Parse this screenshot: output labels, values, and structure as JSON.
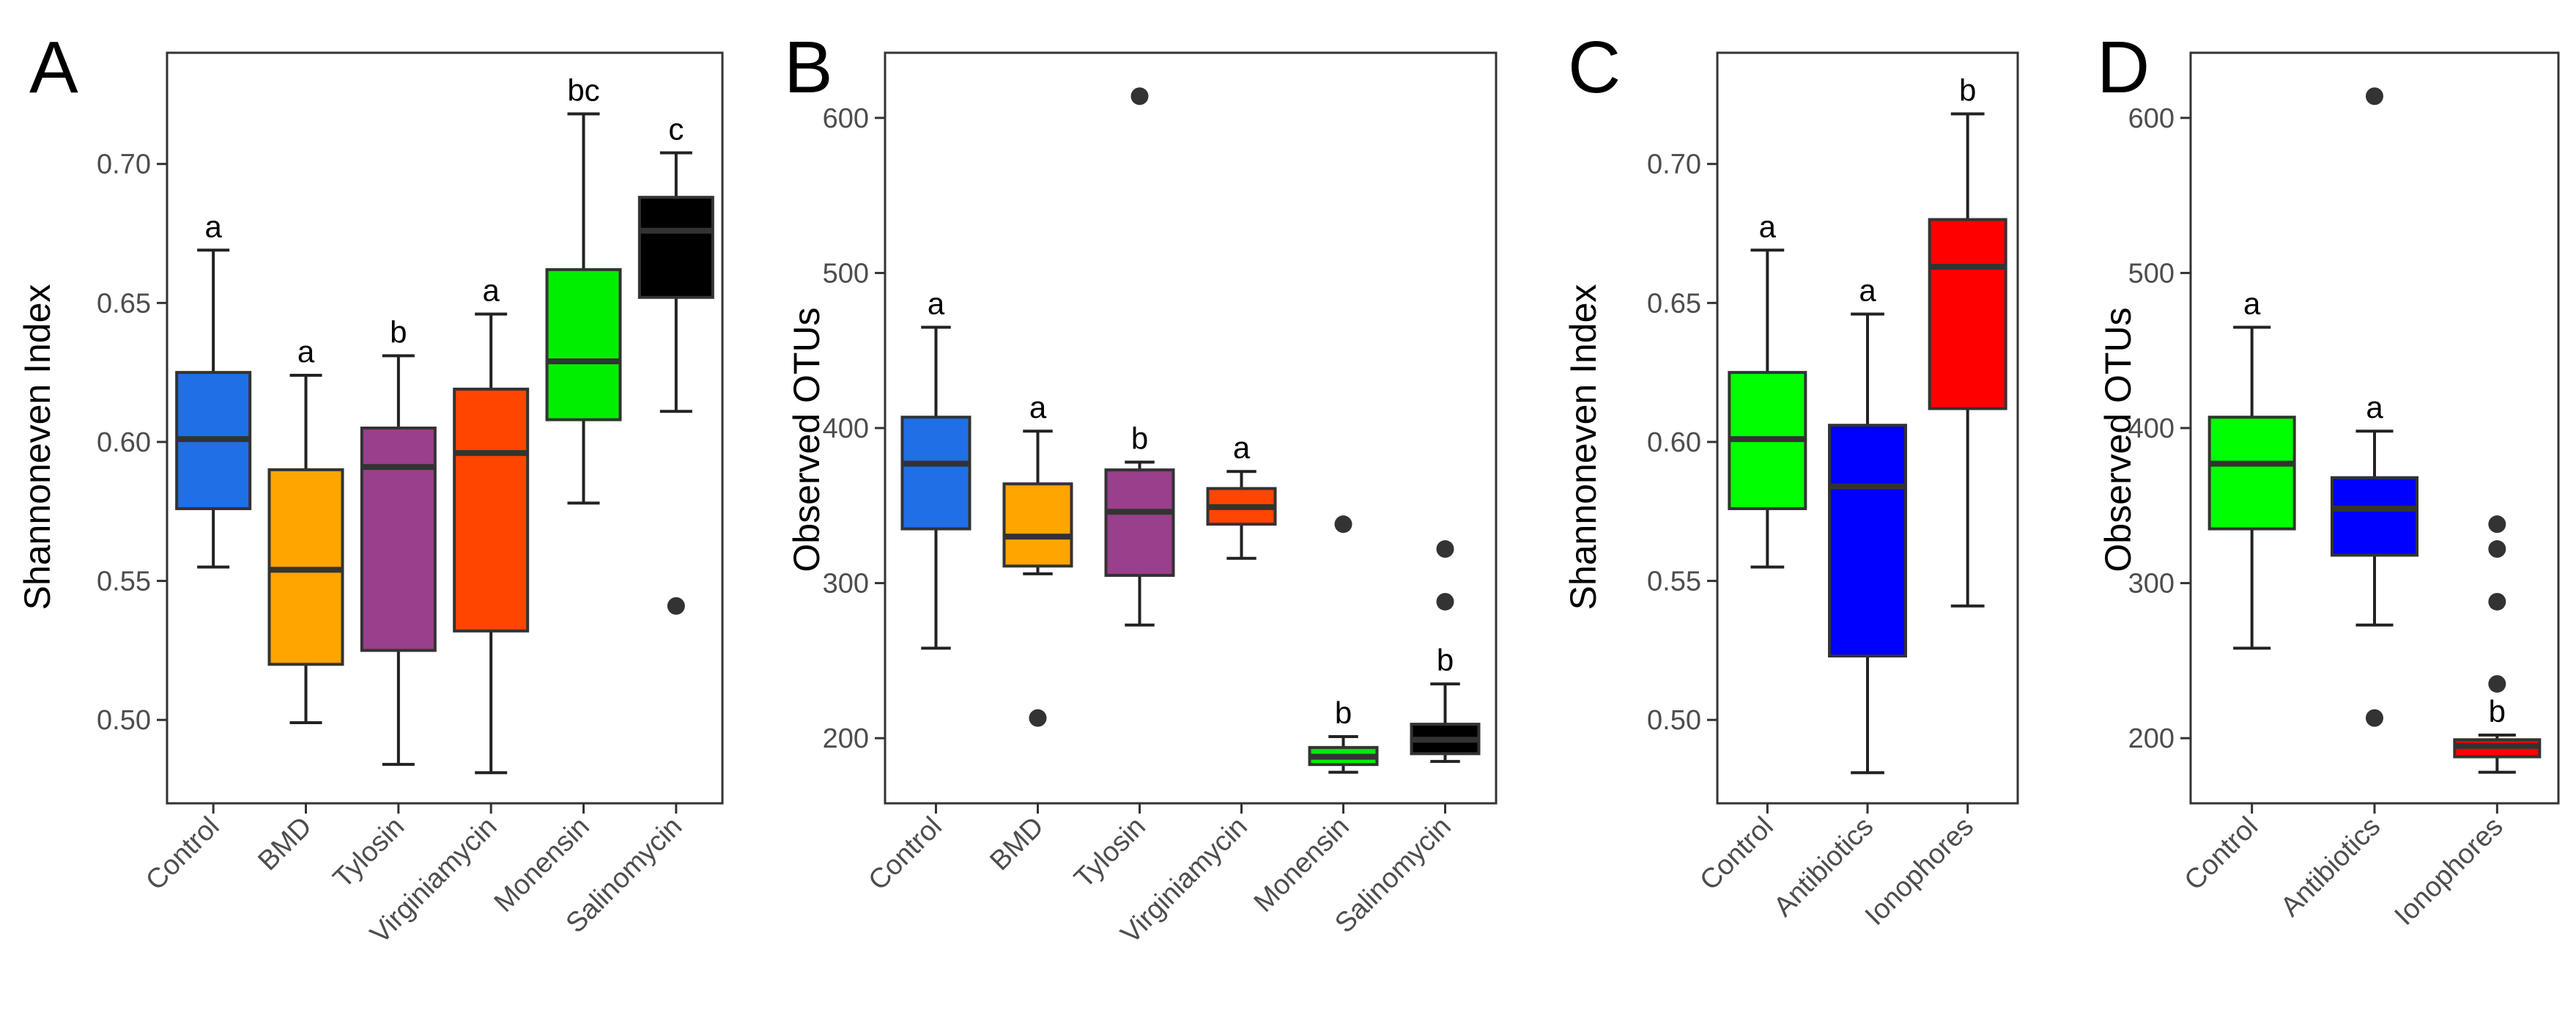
{
  "chart_data": [
    {
      "panel": "A",
      "type": "box",
      "ylabel": "Shannoneven Index",
      "xlabel": "",
      "ylim": [
        0.47,
        0.74
      ],
      "yticks": [
        0.5,
        0.55,
        0.6,
        0.65,
        0.7
      ],
      "ytick_labels": [
        "0.50",
        "0.55",
        "0.60",
        "0.65",
        "0.70"
      ],
      "boxes": [
        {
          "label": "Control",
          "color": "#1F6FE6",
          "whisker_low": 0.555,
          "q1": 0.576,
          "median": 0.601,
          "q3": 0.625,
          "whisker_high": 0.669,
          "outliers": [],
          "sig": "a"
        },
        {
          "label": "BMD",
          "color": "#FFA500",
          "whisker_low": 0.499,
          "q1": 0.52,
          "median": 0.554,
          "q3": 0.59,
          "whisker_high": 0.624,
          "outliers": [],
          "sig": "a"
        },
        {
          "label": "Tylosin",
          "color": "#9A3F8B",
          "whisker_low": 0.484,
          "q1": 0.525,
          "median": 0.591,
          "q3": 0.605,
          "whisker_high": 0.631,
          "outliers": [],
          "sig": "b"
        },
        {
          "label": "Virginiamycin",
          "color": "#FF4500",
          "whisker_low": 0.481,
          "q1": 0.532,
          "median": 0.596,
          "q3": 0.619,
          "whisker_high": 0.646,
          "outliers": [],
          "sig": "a"
        },
        {
          "label": "Monensin",
          "color": "#00EE00",
          "whisker_low": 0.578,
          "q1": 0.608,
          "median": 0.629,
          "q3": 0.662,
          "whisker_high": 0.718,
          "outliers": [],
          "sig": "bc"
        },
        {
          "label": "Salinomycin",
          "color": "#000000",
          "whisker_low": 0.611,
          "q1": 0.652,
          "median": 0.676,
          "q3": 0.688,
          "whisker_high": 0.704,
          "outliers": [
            0.541
          ],
          "sig": "c"
        }
      ]
    },
    {
      "panel": "B",
      "type": "box",
      "ylabel": "Observed OTUs",
      "xlabel": "",
      "ylim": [
        158,
        642
      ],
      "yticks": [
        200,
        300,
        400,
        500,
        600
      ],
      "ytick_labels": [
        "200",
        "300",
        "400",
        "500",
        "600"
      ],
      "boxes": [
        {
          "label": "Control",
          "color": "#1F6FE6",
          "whisker_low": 258,
          "q1": 335,
          "median": 377,
          "q3": 407,
          "whisker_high": 465,
          "outliers": [],
          "sig": "a"
        },
        {
          "label": "BMD",
          "color": "#FFA500",
          "whisker_low": 306,
          "q1": 311,
          "median": 330,
          "q3": 364,
          "whisker_high": 398,
          "outliers": [
            213
          ],
          "sig": "a"
        },
        {
          "label": "Tylosin",
          "color": "#9A3F8B",
          "whisker_low": 273,
          "q1": 305,
          "median": 346,
          "q3": 373,
          "whisker_high": 378,
          "outliers": [
            614
          ],
          "sig": "b"
        },
        {
          "label": "Virginiamycin",
          "color": "#FF4500",
          "whisker_low": 316,
          "q1": 338,
          "median": 349,
          "q3": 361,
          "whisker_high": 372,
          "outliers": [],
          "sig": "a"
        },
        {
          "label": "Monensin",
          "color": "#00EE00",
          "whisker_low": 178,
          "q1": 183,
          "median": 188,
          "q3": 194,
          "whisker_high": 201,
          "outliers": [
            338
          ],
          "sig": "b"
        },
        {
          "label": "Salinomycin",
          "color": "#000000",
          "whisker_low": 185,
          "q1": 190,
          "median": 199,
          "q3": 209,
          "whisker_high": 235,
          "outliers": [
            288,
            322
          ],
          "sig": "b"
        }
      ]
    },
    {
      "panel": "C",
      "type": "box",
      "ylabel": "Shannoneven Index",
      "xlabel": "",
      "ylim": [
        0.47,
        0.74
      ],
      "yticks": [
        0.5,
        0.55,
        0.6,
        0.65,
        0.7
      ],
      "ytick_labels": [
        "0.50",
        "0.55",
        "0.60",
        "0.65",
        "0.70"
      ],
      "boxes": [
        {
          "label": "Control",
          "color": "#00FF00",
          "whisker_low": 0.555,
          "q1": 0.576,
          "median": 0.601,
          "q3": 0.625,
          "whisker_high": 0.669,
          "outliers": [],
          "sig": "a"
        },
        {
          "label": "Antibiotics",
          "color": "#0000FF",
          "whisker_low": 0.481,
          "q1": 0.523,
          "median": 0.584,
          "q3": 0.606,
          "whisker_high": 0.646,
          "outliers": [],
          "sig": "a"
        },
        {
          "label": "Ionophores",
          "color": "#FF0000",
          "whisker_low": 0.541,
          "q1": 0.612,
          "median": 0.663,
          "q3": 0.68,
          "whisker_high": 0.718,
          "outliers": [],
          "sig": "b"
        }
      ]
    },
    {
      "panel": "D",
      "type": "box",
      "ylabel": "Observed OTUs",
      "xlabel": "",
      "ylim": [
        158,
        642
      ],
      "yticks": [
        200,
        300,
        400,
        500,
        600
      ],
      "ytick_labels": [
        "200",
        "300",
        "400",
        "500",
        "600"
      ],
      "boxes": [
        {
          "label": "Control",
          "color": "#00FF00",
          "whisker_low": 258,
          "q1": 335,
          "median": 377,
          "q3": 407,
          "whisker_high": 465,
          "outliers": [],
          "sig": "a"
        },
        {
          "label": "Antibiotics",
          "color": "#0000FF",
          "whisker_low": 273,
          "q1": 318,
          "median": 348,
          "q3": 368,
          "whisker_high": 398,
          "outliers": [
            213,
            614
          ],
          "sig": "a"
        },
        {
          "label": "Ionophores",
          "color": "#FF0000",
          "whisker_low": 178,
          "q1": 188,
          "median": 195,
          "q3": 199,
          "whisker_high": 202,
          "outliers": [
            235,
            288,
            322,
            338
          ],
          "sig": "b"
        }
      ]
    }
  ]
}
